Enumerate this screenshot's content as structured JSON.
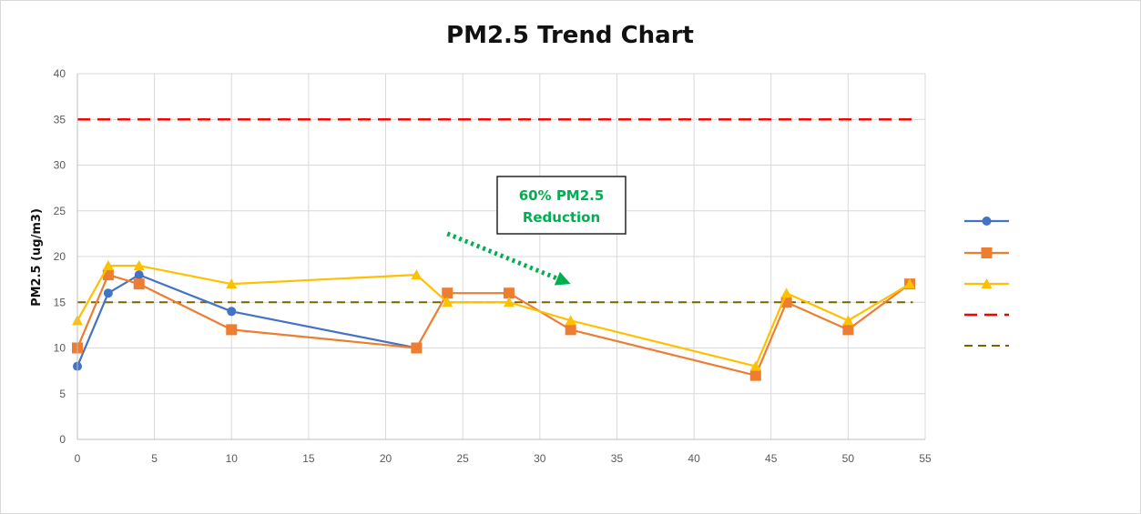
{
  "chart_data": {
    "type": "line",
    "title": "PM2.5 Trend Chart",
    "xlabel": "",
    "ylabel": "PM2.5 (ug/m3)",
    "xlim": [
      0,
      55
    ],
    "ylim": [
      0,
      40
    ],
    "xticks": [
      0,
      5,
      10,
      15,
      20,
      25,
      30,
      35,
      40,
      45,
      50,
      55
    ],
    "yticks": [
      0,
      5,
      10,
      15,
      20,
      25,
      30,
      35,
      40
    ],
    "grid": true,
    "legend_position": "right",
    "series": [
      {
        "name": "",
        "color": "#4472c4",
        "marker": "circle",
        "points": [
          [
            0,
            8
          ],
          [
            2,
            16
          ],
          [
            4,
            18
          ],
          [
            10,
            14
          ],
          [
            22,
            10
          ]
        ]
      },
      {
        "name": "",
        "color": "#ed7d31",
        "marker": "square",
        "points": [
          [
            0,
            10
          ],
          [
            2,
            18
          ],
          [
            4,
            17
          ],
          [
            10,
            12
          ],
          [
            22,
            10
          ],
          [
            24,
            16
          ],
          [
            28,
            16
          ],
          [
            32,
            12
          ],
          [
            44,
            7
          ],
          [
            46,
            15
          ],
          [
            50,
            12
          ],
          [
            54,
            17
          ]
        ]
      },
      {
        "name": "",
        "color": "#ffc000",
        "marker": "triangle",
        "points": [
          [
            0,
            13
          ],
          [
            2,
            19
          ],
          [
            4,
            19
          ],
          [
            10,
            17
          ],
          [
            22,
            18
          ],
          [
            24,
            15
          ],
          [
            28,
            15
          ],
          [
            32,
            13
          ],
          [
            44,
            8
          ],
          [
            46,
            16
          ],
          [
            50,
            13
          ],
          [
            54,
            17
          ]
        ]
      }
    ],
    "reference_lines": [
      {
        "name": "",
        "value": 35,
        "color": "#ff0000",
        "style": "dashed"
      },
      {
        "name": "",
        "value": 15,
        "color": "#806000",
        "style": "dashed"
      }
    ],
    "annotation": {
      "lines": [
        "60% PM2.5",
        "Reduction"
      ],
      "color": "#00b050",
      "arrow": {
        "from": [
          24,
          22.5
        ],
        "to": [
          32,
          17
        ]
      }
    }
  }
}
